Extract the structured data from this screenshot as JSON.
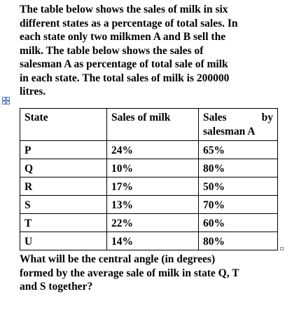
{
  "intro_lines": [
    "The table below shows the sales of milk in six",
    "different states as a percentage of total sales. In",
    "each state only two milkmen A and B sell the",
    "milk. The table below shows the sales of",
    "salesman A as percentage of total sale of milk",
    "in each state. The total sales of milk is 200000",
    "litres."
  ],
  "table": {
    "headers": {
      "state": "State",
      "sales_of_milk": "Sales of milk",
      "sales_by_a_line1_left": "Sales",
      "sales_by_a_line1_right": "by",
      "sales_by_a_line2": "salesman A"
    },
    "rows": [
      {
        "state": "P",
        "sales": "24%",
        "by_a": "65%"
      },
      {
        "state": "Q",
        "sales": "10%",
        "by_a": "80%"
      },
      {
        "state": "R",
        "sales": "17%",
        "by_a": "50%"
      },
      {
        "state": "S",
        "sales": "13%",
        "by_a": "70%"
      },
      {
        "state": "T",
        "sales": "22%",
        "by_a": "60%"
      },
      {
        "state": "U",
        "sales": "14%",
        "by_a": "80%"
      }
    ]
  },
  "question_lines": [
    "What will be the central angle (in degrees)",
    "formed by the average sale of milk in state Q, T",
    "and S together?"
  ],
  "icons": {
    "table_anchor": "table-move-handle-icon"
  }
}
